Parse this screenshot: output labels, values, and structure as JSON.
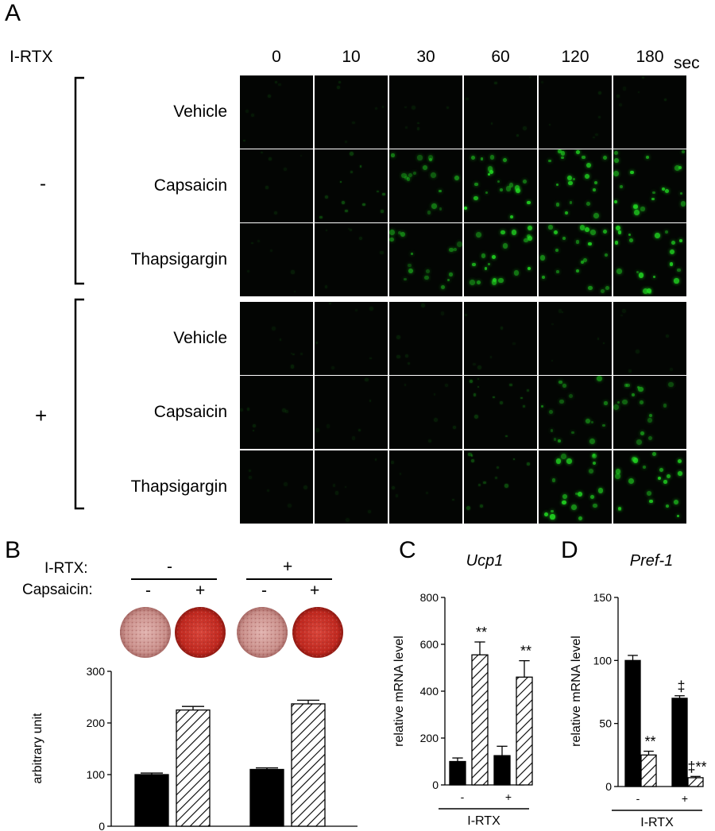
{
  "panels": {
    "a": "A",
    "b": "B",
    "c": "C",
    "d": "D"
  },
  "panel_a": {
    "irtx_label": "I-RTX",
    "times": [
      "0",
      "10",
      "30",
      "60",
      "120",
      "180"
    ],
    "time_unit": "sec",
    "groups": [
      {
        "sign": "-",
        "rows": [
          "Vehicle",
          "Capsaicin",
          "Thapsigargin"
        ]
      },
      {
        "sign": "+",
        "rows": [
          "Vehicle",
          "Capsaicin",
          "Thapsigargin"
        ]
      }
    ],
    "colors": {
      "background": "#030503",
      "signal": "#22dd22"
    },
    "intensity_note_levels": [
      [
        0,
        0,
        0,
        0,
        0,
        0
      ],
      [
        0,
        1,
        2,
        3,
        3,
        3
      ],
      [
        0,
        0,
        2,
        3,
        3,
        3
      ],
      [
        0,
        0,
        0,
        0,
        0,
        0
      ],
      [
        0,
        0,
        0,
        1,
        2,
        2
      ],
      [
        0,
        0,
        0,
        1,
        3,
        3
      ]
    ]
  },
  "panel_b": {
    "irtx_label": "I-RTX:",
    "capsaicin_label": "Capsaicin:",
    "irtx_signs": [
      "-",
      "+"
    ],
    "capsaicin_signs": [
      "-",
      "+",
      "-",
      "+"
    ]
  },
  "chart_data": [
    {
      "type": "bar",
      "panel": "B",
      "ylabel": "arbitrary unit",
      "ylim": [
        0,
        300
      ],
      "yticks": [
        "0",
        "100",
        "200",
        "300"
      ],
      "categories": [
        "I-RTX - / Capsaicin -",
        "I-RTX - / Capsaicin +",
        "I-RTX + / Capsaicin -",
        "I-RTX + / Capsaicin +"
      ],
      "values": [
        100,
        225,
        110,
        237
      ],
      "errors": [
        3,
        7,
        3,
        7
      ],
      "fills": [
        "solid",
        "hatched",
        "solid",
        "hatched"
      ]
    },
    {
      "type": "bar",
      "panel": "C",
      "title": "Ucp1",
      "ylabel": "relative mRNA level",
      "xlabel": "I-RTX",
      "ylim": [
        0,
        800
      ],
      "yticks": [
        "0",
        "200",
        "400",
        "600",
        "800"
      ],
      "xticks": [
        "-",
        "+"
      ],
      "values": [
        100,
        555,
        125,
        460
      ],
      "errors": [
        15,
        55,
        40,
        70
      ],
      "fills": [
        "solid",
        "hatched",
        "solid",
        "hatched"
      ],
      "annotations": [
        "",
        "**",
        "",
        "**"
      ]
    },
    {
      "type": "bar",
      "panel": "D",
      "title": "Pref-1",
      "ylabel": "relative mRNA level",
      "xlabel": "I-RTX",
      "ylim": [
        0,
        150
      ],
      "yticks": [
        "0",
        "50",
        "100",
        "150"
      ],
      "xticks": [
        "-",
        "+"
      ],
      "values": [
        100,
        25,
        70,
        7
      ],
      "errors": [
        4,
        3,
        2,
        1
      ],
      "fills": [
        "solid",
        "hatched",
        "solid",
        "hatched"
      ],
      "annotations": [
        "",
        "**",
        "‡",
        "‡**"
      ]
    }
  ]
}
